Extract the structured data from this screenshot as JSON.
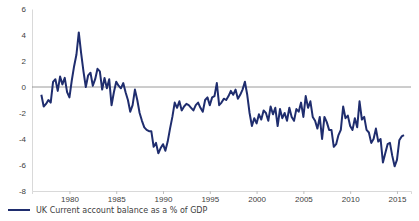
{
  "chart_data": {
    "type": "line",
    "x": [
      1977,
      1977.25,
      1977.5,
      1977.75,
      1978,
      1978.25,
      1978.5,
      1978.75,
      1979,
      1979.25,
      1979.5,
      1979.75,
      1980,
      1980.25,
      1980.5,
      1980.75,
      1981,
      1981.25,
      1981.5,
      1981.75,
      1982,
      1982.25,
      1982.5,
      1982.75,
      1983,
      1983.25,
      1983.5,
      1983.75,
      1984,
      1984.25,
      1984.5,
      1984.75,
      1985,
      1985.25,
      1985.5,
      1985.75,
      1986,
      1986.25,
      1986.5,
      1986.75,
      1987,
      1987.25,
      1987.5,
      1987.75,
      1988,
      1988.25,
      1988.5,
      1988.75,
      1989,
      1989.25,
      1989.5,
      1989.75,
      1990,
      1990.25,
      1990.5,
      1990.75,
      1991,
      1991.25,
      1991.5,
      1991.75,
      1992,
      1992.25,
      1992.5,
      1992.75,
      1993,
      1993.25,
      1993.5,
      1993.75,
      1994,
      1994.25,
      1994.5,
      1994.75,
      1995,
      1995.25,
      1995.5,
      1995.75,
      1996,
      1996.25,
      1996.5,
      1996.75,
      1997,
      1997.25,
      1997.5,
      1997.75,
      1998,
      1998.25,
      1998.5,
      1998.75,
      1999,
      1999.25,
      1999.5,
      1999.75,
      2000,
      2000.25,
      2000.5,
      2000.75,
      2001,
      2001.25,
      2001.5,
      2001.75,
      2002,
      2002.25,
      2002.5,
      2002.75,
      2003,
      2003.25,
      2003.5,
      2003.75,
      2004,
      2004.25,
      2004.5,
      2004.75,
      2005,
      2005.25,
      2005.5,
      2005.75,
      2006,
      2006.25,
      2006.5,
      2006.75,
      2007,
      2007.25,
      2007.5,
      2007.75,
      2008,
      2008.25,
      2008.5,
      2008.75,
      2009,
      2009.25,
      2009.5,
      2009.75,
      2010,
      2010.25,
      2010.5,
      2010.75,
      2011,
      2011.25,
      2011.5,
      2011.75,
      2012,
      2012.25,
      2012.5,
      2012.75,
      2013,
      2013.25,
      2013.5,
      2013.75,
      2014,
      2014.25,
      2014.5,
      2014.75,
      2015,
      2015.25,
      2015.5,
      2015.75
    ],
    "series": [
      {
        "name": "UK Current account balance as a % of GDP",
        "color": "#1f2d6e",
        "values": [
          -0.6,
          -1.5,
          -1.3,
          -1.0,
          -1.2,
          0.4,
          0.6,
          -0.3,
          0.8,
          0.2,
          0.7,
          -0.4,
          -0.8,
          0.5,
          1.6,
          2.5,
          4.2,
          2.6,
          1.2,
          0.0,
          0.9,
          1.1,
          0.1,
          0.6,
          1.4,
          1.2,
          -0.2,
          0.7,
          -0.1,
          0.6,
          -1.4,
          -0.4,
          0.4,
          0.1,
          -0.1,
          0.3,
          -0.4,
          -1.0,
          -1.9,
          -1.4,
          -0.2,
          -1.0,
          -2.0,
          -2.6,
          -3.1,
          -3.3,
          -3.4,
          -3.4,
          -4.6,
          -4.3,
          -5.1,
          -4.7,
          -4.4,
          -4.9,
          -4.2,
          -3.2,
          -2.3,
          -1.2,
          -1.6,
          -1.1,
          -1.8,
          -1.5,
          -1.3,
          -1.4,
          -1.6,
          -1.8,
          -1.4,
          -1.2,
          -1.6,
          -1.9,
          -1.0,
          -0.8,
          -1.4,
          -0.8,
          -0.7,
          0.3,
          -1.4,
          -1.2,
          -0.9,
          -1.0,
          -0.7,
          -0.3,
          -0.6,
          -0.2,
          -0.9,
          -0.6,
          -0.2,
          0.4,
          -0.6,
          -2.0,
          -3.0,
          -2.4,
          -2.8,
          -2.1,
          -2.5,
          -1.8,
          -2.0,
          -2.6,
          -1.5,
          -2.1,
          -1.6,
          -3.0,
          -1.7,
          -2.4,
          -2.0,
          -2.6,
          -1.6,
          -2.3,
          -2.6,
          -1.7,
          -1.9,
          -1.2,
          -2.3,
          -0.7,
          -1.6,
          -1.1,
          -2.3,
          -2.6,
          -3.2,
          -2.3,
          -4.0,
          -2.3,
          -2.7,
          -3.3,
          -3.3,
          -4.6,
          -4.4,
          -3.7,
          -3.3,
          -1.5,
          -2.4,
          -2.2,
          -3.0,
          -3.3,
          -2.4,
          -3.1,
          -1.1,
          -2.5,
          -2.3,
          -3.3,
          -3.5,
          -4.3,
          -4.0,
          -3.2,
          -4.2,
          -4.0,
          -5.8,
          -5.1,
          -4.4,
          -4.3,
          -5.3,
          -6.1,
          -5.6,
          -4.1,
          -3.8,
          -3.7
        ]
      }
    ],
    "xlim": [
      1976,
      2016.5
    ],
    "xticks": [
      1980,
      1985,
      1990,
      1995,
      2000,
      2005,
      2010,
      2015
    ],
    "ylim": [
      -8,
      6
    ],
    "yticks": [
      -8,
      -6,
      -4,
      -2,
      0,
      2,
      4,
      6
    ],
    "legend": "bottom"
  }
}
